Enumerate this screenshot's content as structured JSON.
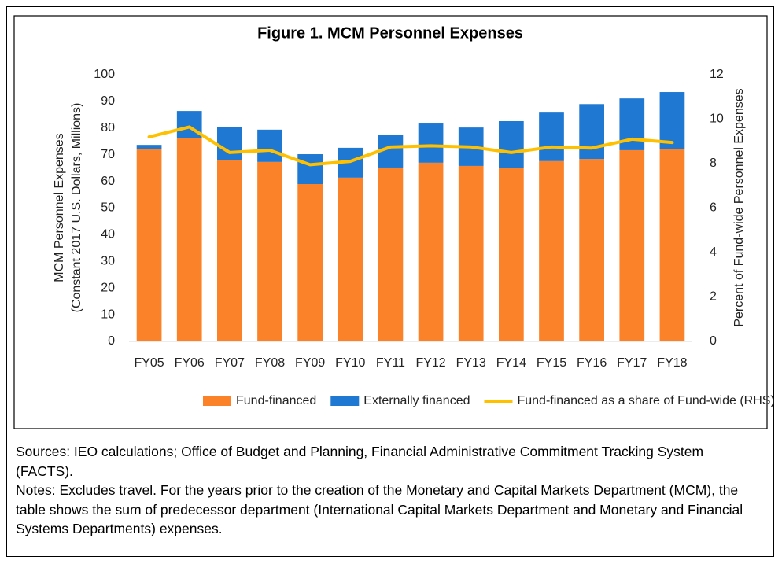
{
  "chart_data": {
    "type": "bar",
    "stacked": true,
    "title": "Figure 1. MCM Personnel Expenses",
    "y_label": [
      "MCM Personnel Expenses",
      "(Constant 2017 U.S. Dollars, Millions)"
    ],
    "y2_label": "Percent of Fund-wide Personnel Expenses",
    "categories": [
      "FY05",
      "FY06",
      "FY07",
      "FY08",
      "FY09",
      "FY10",
      "FY11",
      "FY12",
      "FY13",
      "FY14",
      "FY15",
      "FY16",
      "FY17",
      "FY18"
    ],
    "series": [
      {
        "name": "Fund-financed",
        "color": "#fb8228",
        "values": [
          72,
          76.4,
          68,
          67.3,
          59,
          61.4,
          65.2,
          67,
          65.8,
          64.9,
          67.6,
          68.4,
          71.7,
          72
        ]
      },
      {
        "name": "Externally financed",
        "color": "#1f78d1",
        "values": [
          1.7,
          10,
          12.5,
          12.1,
          11.2,
          11.2,
          12.1,
          14.7,
          14.4,
          17.7,
          18.2,
          20.6,
          19.4,
          21.5
        ]
      },
      {
        "name": "Fund-financed as a share of Fund-wide (RHS)",
        "color": "#ffc000",
        "type": "line",
        "axis": "y2",
        "values": [
          9.2,
          9.65,
          8.5,
          8.6,
          7.95,
          8.1,
          8.75,
          8.8,
          8.75,
          8.5,
          8.75,
          8.7,
          9.1,
          8.95
        ]
      }
    ],
    "ylim": [
      0,
      100
    ],
    "yticks": [
      0,
      10,
      20,
      30,
      40,
      50,
      60,
      70,
      80,
      90,
      100
    ],
    "y2lim": [
      0,
      12
    ],
    "y2ticks": [
      0,
      2,
      4,
      6,
      8,
      10,
      12
    ],
    "grid": false,
    "legend": "bottom"
  },
  "sources": "Sources: IEO calculations; Office of Budget and Planning, Financial Administrative Commitment Tracking System (FACTS).",
  "notes": "Notes: Excludes travel. For the years prior to the creation of the Monetary and Capital Markets Department (MCM), the table shows the sum of predecessor department (International Capital Markets Department and Monetary and Financial Systems Departments) expenses."
}
